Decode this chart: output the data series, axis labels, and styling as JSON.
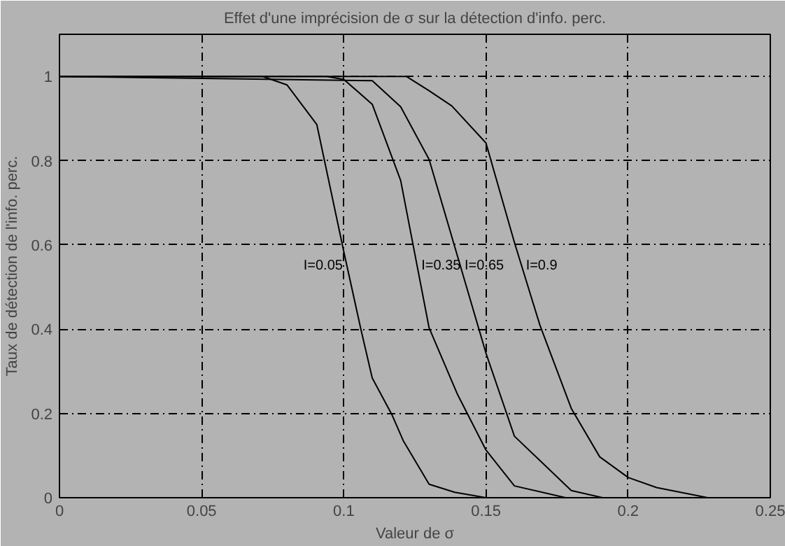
{
  "chart_data": {
    "type": "line",
    "title": "Effet d'une imprécision de σ sur la détection d'info. perc.",
    "xlabel": "Valeur de σ",
    "ylabel": "Taux de détection de l'info. perc.",
    "xlim": [
      0,
      0.25
    ],
    "ylim": [
      0,
      1.1
    ],
    "xticks": [
      0,
      0.05,
      0.1,
      0.15,
      0.2,
      0.25
    ],
    "yticks": [
      0,
      0.2,
      0.4,
      0.6,
      0.8,
      1
    ],
    "grid": true,
    "line_style": "solid",
    "series": [
      {
        "name": "I=0.05",
        "color": "#000000",
        "x": [
          0,
          0.0715,
          0.08,
          0.0905,
          0.1,
          0.106,
          0.11,
          0.117,
          0.121,
          0.13,
          0.139,
          0.15
        ],
        "values": [
          1,
          1,
          0.98,
          0.886,
          0.584,
          0.4,
          0.284,
          0.196,
          0.134,
          0.032,
          0.013,
          0
        ]
      },
      {
        "name": "I=0.35",
        "color": "#000000",
        "x": [
          0,
          0.094,
          0.1,
          0.11,
          0.12,
          0.13,
          0.14,
          0.15,
          0.16,
          0.178
        ],
        "values": [
          1,
          1,
          0.993,
          0.934,
          0.753,
          0.403,
          0.245,
          0.113,
          0.028,
          0
        ]
      },
      {
        "name": "I=0.65",
        "color": "#000000",
        "x": [
          0,
          0.11,
          0.12,
          0.13,
          0.15,
          0.16,
          0.18,
          0.191
        ],
        "values": [
          1,
          0.99,
          0.928,
          0.803,
          0.343,
          0.146,
          0.017,
          0
        ]
      },
      {
        "name": "I=0.9",
        "color": "#000000",
        "x": [
          0,
          0.122,
          0.13,
          0.138,
          0.15,
          0.16,
          0.169,
          0.18,
          0.19,
          0.2,
          0.21,
          0.228
        ],
        "values": [
          1,
          1,
          0.966,
          0.93,
          0.842,
          0.606,
          0.409,
          0.212,
          0.097,
          0.048,
          0.024,
          0
        ]
      }
    ]
  }
}
